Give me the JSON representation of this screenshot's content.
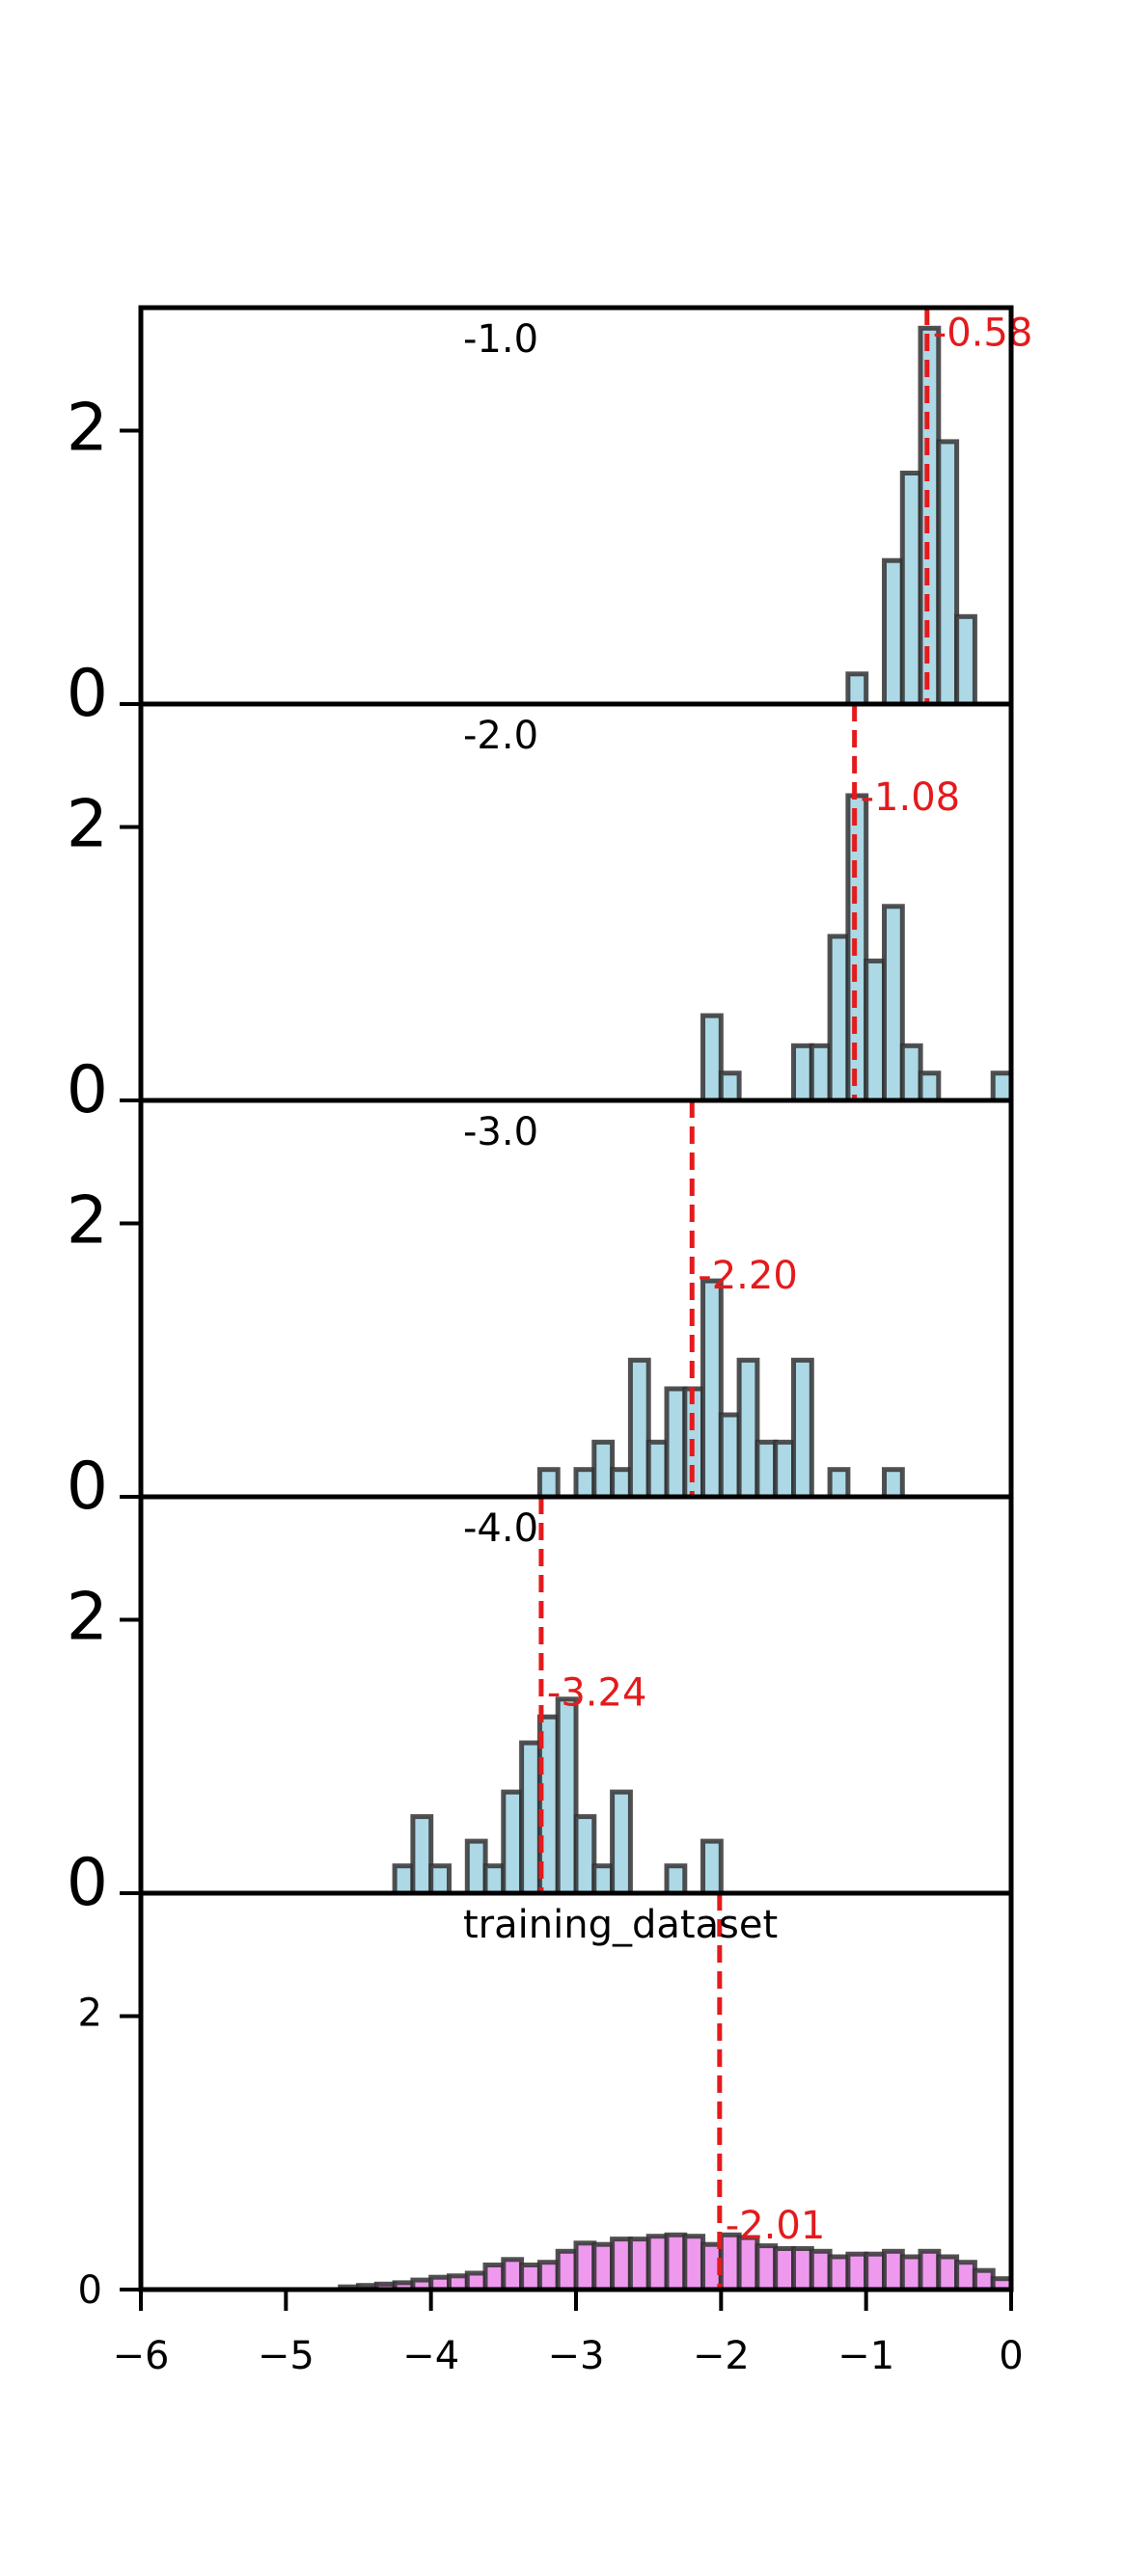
{
  "chart_data": {
    "type": "bar",
    "layout": "stacked-subplots-shared-x",
    "xlim": [
      -6,
      0
    ],
    "xticks": [
      -6,
      -5,
      -4,
      -3,
      -2,
      -1,
      0
    ],
    "xtick_labels": [
      "−6",
      "−5",
      "−4",
      "−3",
      "−2",
      "−1",
      "0"
    ],
    "bin_width": 0.125,
    "colors": {
      "bars": "#add8e6",
      "bars_last": "#ee99ee",
      "edge": "#333333",
      "mean_line": "#e41a1c",
      "mean_label": "#e41a1c",
      "axis": "#000000"
    },
    "panels": [
      {
        "title": "-1.0",
        "ylim": [
          0,
          2.9
        ],
        "yticks": [
          0,
          2
        ],
        "ytick_labels": [
          "0",
          "2"
        ],
        "mean": -0.58,
        "mean_label": "-0.58",
        "mean_label_y": 2.7,
        "bins": [
          {
            "x": -1.125,
            "h": 0.22
          },
          {
            "x": -0.875,
            "h": 1.05
          },
          {
            "x": -0.75,
            "h": 1.69
          },
          {
            "x": -0.625,
            "h": 2.75
          },
          {
            "x": -0.5,
            "h": 1.92
          },
          {
            "x": -0.375,
            "h": 0.64
          }
        ]
      },
      {
        "title": "-2.0",
        "ylim": [
          0,
          2.9
        ],
        "yticks": [
          0,
          2
        ],
        "ytick_labels": [
          "0",
          "2"
        ],
        "mean": -1.08,
        "mean_label": "-1.08",
        "mean_label_y": 2.2,
        "bins": [
          {
            "x": -2.125,
            "h": 0.62
          },
          {
            "x": -2.0,
            "h": 0.2
          },
          {
            "x": -1.5,
            "h": 0.4
          },
          {
            "x": -1.375,
            "h": 0.4
          },
          {
            "x": -1.25,
            "h": 1.2
          },
          {
            "x": -1.125,
            "h": 2.23
          },
          {
            "x": -1.0,
            "h": 1.02
          },
          {
            "x": -0.875,
            "h": 1.42
          },
          {
            "x": -0.75,
            "h": 0.4
          },
          {
            "x": -0.625,
            "h": 0.2
          },
          {
            "x": -0.125,
            "h": 0.2
          }
        ]
      },
      {
        "title": "-3.0",
        "ylim": [
          0,
          2.9
        ],
        "yticks": [
          0,
          2
        ],
        "ytick_labels": [
          "0",
          "2"
        ],
        "mean": -2.2,
        "mean_label": "-2.20",
        "mean_label_y": 1.6,
        "bins": [
          {
            "x": -3.25,
            "h": 0.2
          },
          {
            "x": -3.0,
            "h": 0.2
          },
          {
            "x": -2.875,
            "h": 0.4
          },
          {
            "x": -2.75,
            "h": 0.2
          },
          {
            "x": -2.625,
            "h": 1.0
          },
          {
            "x": -2.5,
            "h": 0.4
          },
          {
            "x": -2.375,
            "h": 0.79
          },
          {
            "x": -2.25,
            "h": 0.79
          },
          {
            "x": -2.125,
            "h": 1.58
          },
          {
            "x": -2.0,
            "h": 0.6
          },
          {
            "x": -1.875,
            "h": 1.0
          },
          {
            "x": -1.75,
            "h": 0.4
          },
          {
            "x": -1.625,
            "h": 0.4
          },
          {
            "x": -1.5,
            "h": 1.0
          },
          {
            "x": -1.25,
            "h": 0.2
          },
          {
            "x": -0.875,
            "h": 0.2
          }
        ]
      },
      {
        "title": "-4.0",
        "ylim": [
          0,
          2.9
        ],
        "yticks": [
          0,
          2
        ],
        "ytick_labels": [
          "0",
          "2"
        ],
        "mean": -3.24,
        "mean_label": "-3.24",
        "mean_label_y": 1.45,
        "bins": [
          {
            "x": -4.25,
            "h": 0.2
          },
          {
            "x": -4.125,
            "h": 0.56
          },
          {
            "x": -4.0,
            "h": 0.2
          },
          {
            "x": -3.75,
            "h": 0.38
          },
          {
            "x": -3.625,
            "h": 0.2
          },
          {
            "x": -3.5,
            "h": 0.74
          },
          {
            "x": -3.375,
            "h": 1.1
          },
          {
            "x": -3.25,
            "h": 1.29
          },
          {
            "x": -3.125,
            "h": 1.42
          },
          {
            "x": -3.0,
            "h": 0.56
          },
          {
            "x": -2.875,
            "h": 0.2
          },
          {
            "x": -2.75,
            "h": 0.74
          },
          {
            "x": -2.375,
            "h": 0.2
          },
          {
            "x": -2.125,
            "h": 0.38
          }
        ]
      },
      {
        "title": "training_dataset",
        "ylim": [
          0,
          2.9
        ],
        "yticks": [
          0,
          2
        ],
        "ytick_labels": [
          "0",
          "2"
        ],
        "small_yticks": true,
        "mean": -2.01,
        "mean_label": "-2.01",
        "mean_label_y": 0.45,
        "pink": true,
        "bins": [
          {
            "x": -4.625,
            "h": 0.02
          },
          {
            "x": -4.5,
            "h": 0.03
          },
          {
            "x": -4.375,
            "h": 0.04
          },
          {
            "x": -4.25,
            "h": 0.05
          },
          {
            "x": -4.125,
            "h": 0.07
          },
          {
            "x": -4.0,
            "h": 0.09
          },
          {
            "x": -3.875,
            "h": 0.1
          },
          {
            "x": -3.75,
            "h": 0.12
          },
          {
            "x": -3.625,
            "h": 0.18
          },
          {
            "x": -3.5,
            "h": 0.22
          },
          {
            "x": -3.375,
            "h": 0.18
          },
          {
            "x": -3.25,
            "h": 0.2
          },
          {
            "x": -3.125,
            "h": 0.28
          },
          {
            "x": -3.0,
            "h": 0.34
          },
          {
            "x": -2.875,
            "h": 0.33
          },
          {
            "x": -2.75,
            "h": 0.37
          },
          {
            "x": -2.625,
            "h": 0.37
          },
          {
            "x": -2.5,
            "h": 0.39
          },
          {
            "x": -2.375,
            "h": 0.4
          },
          {
            "x": -2.25,
            "h": 0.39
          },
          {
            "x": -2.125,
            "h": 0.33
          },
          {
            "x": -2.0,
            "h": 0.4
          },
          {
            "x": -1.875,
            "h": 0.38
          },
          {
            "x": -1.75,
            "h": 0.32
          },
          {
            "x": -1.625,
            "h": 0.3
          },
          {
            "x": -1.5,
            "h": 0.3
          },
          {
            "x": -1.375,
            "h": 0.28
          },
          {
            "x": -1.25,
            "h": 0.24
          },
          {
            "x": -1.125,
            "h": 0.26
          },
          {
            "x": -1.0,
            "h": 0.26
          },
          {
            "x": -0.875,
            "h": 0.28
          },
          {
            "x": -0.75,
            "h": 0.24
          },
          {
            "x": -0.625,
            "h": 0.28
          },
          {
            "x": -0.5,
            "h": 0.24
          },
          {
            "x": -0.375,
            "h": 0.2
          },
          {
            "x": -0.25,
            "h": 0.14
          },
          {
            "x": -0.125,
            "h": 0.08
          }
        ]
      }
    ]
  }
}
